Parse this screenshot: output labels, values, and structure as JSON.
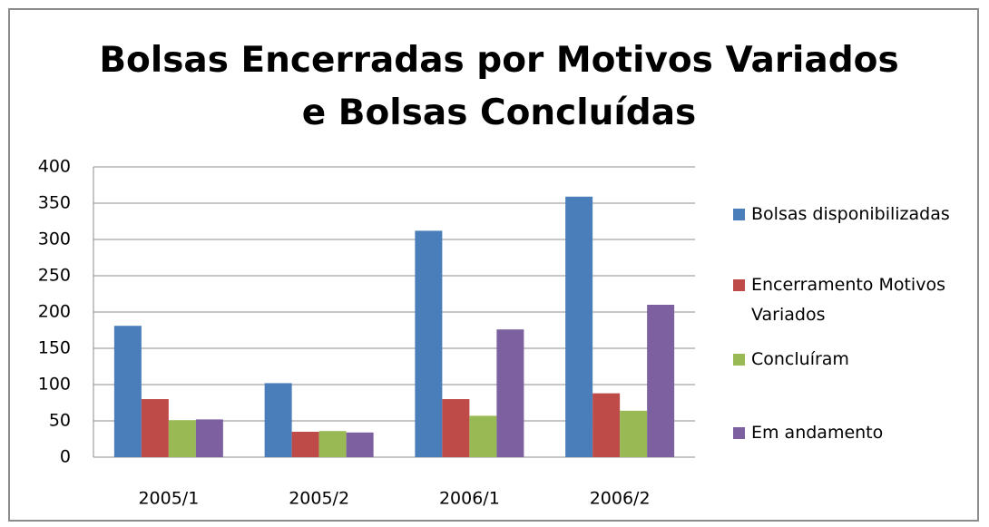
{
  "chart_data": {
    "type": "bar",
    "title": "Bolsas Encerradas por Motivos Variados e Bolsas Concluídas",
    "categories": [
      "2005/1",
      "2005/2",
      "2006/1",
      "2006/2"
    ],
    "series": [
      {
        "name": "Bolsas disponibilizadas",
        "color": "#4a7ebb",
        "values": [
          181,
          102,
          312,
          359
        ]
      },
      {
        "name": "Encerramento Motivos Variados",
        "color": "#be4b48",
        "values": [
          80,
          35,
          80,
          88
        ]
      },
      {
        "name": "Concluíram",
        "color": "#98b954",
        "values": [
          51,
          36,
          57,
          64
        ]
      },
      {
        "name": "Em andamento",
        "color": "#7d60a0",
        "values": [
          52,
          34,
          176,
          210
        ]
      }
    ],
    "ylim": [
      0,
      400
    ],
    "yticks": [
      0,
      50,
      100,
      150,
      200,
      250,
      300,
      350,
      400
    ],
    "grid": true,
    "legend": "right"
  }
}
